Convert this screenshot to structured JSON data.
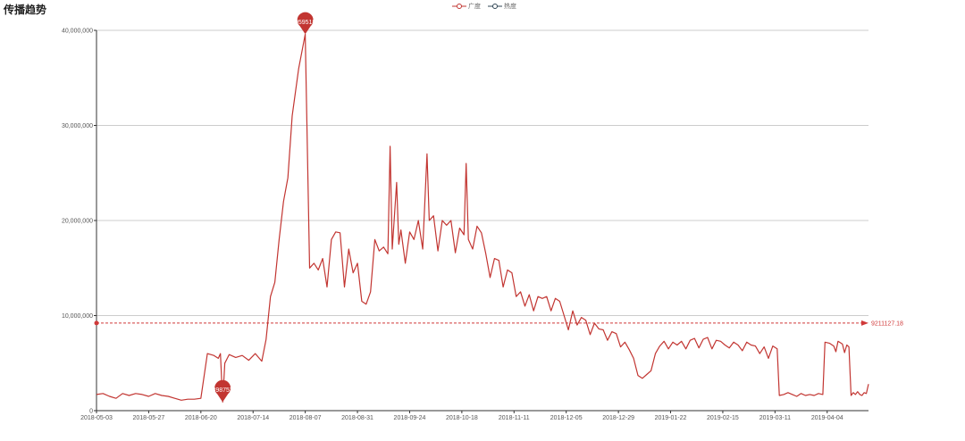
{
  "page": {
    "title": "传播趋势"
  },
  "chart_data": {
    "type": "line",
    "title": "传播趋势",
    "legend": {
      "placement": "top-center",
      "items": [
        {
          "name": "广度",
          "color": "#c23531"
        },
        {
          "name": "热度",
          "color": "#2f4554"
        }
      ]
    },
    "x_ticks": [
      "2018-05-03",
      "2018-05-27",
      "2018-06-20",
      "2018-07-14",
      "2018-08-07",
      "2018-08-31",
      "2018-09-24",
      "2018-10-18",
      "2018-11-11",
      "2018-12-05",
      "2018-12-29",
      "2019-01-22",
      "2019-02-15",
      "2019-03-11",
      "2019-04-04"
    ],
    "x_range": [
      "2018-05-03",
      "2019-04-23"
    ],
    "y_ticks": [
      {
        "value": 0,
        "label": "0"
      },
      {
        "value": 10000000,
        "label": "10,000,000"
      },
      {
        "value": 20000000,
        "label": "20,000,000"
      },
      {
        "value": 30000000,
        "label": "30,000,000"
      },
      {
        "value": 40000000,
        "label": "40,000,000"
      }
    ],
    "ylim": [
      0,
      40000000
    ],
    "grid": true,
    "series": [
      {
        "name": "广度",
        "color": "#c23531",
        "points": [
          [
            "2018-05-03",
            1700000
          ],
          [
            "2018-05-06",
            1800000
          ],
          [
            "2018-05-09",
            1500000
          ],
          [
            "2018-05-12",
            1300000
          ],
          [
            "2018-05-15",
            1800000
          ],
          [
            "2018-05-18",
            1600000
          ],
          [
            "2018-05-21",
            1800000
          ],
          [
            "2018-05-24",
            1700000
          ],
          [
            "2018-05-27",
            1500000
          ],
          [
            "2018-05-30",
            1800000
          ],
          [
            "2018-06-02",
            1600000
          ],
          [
            "2018-06-05",
            1500000
          ],
          [
            "2018-06-08",
            1300000
          ],
          [
            "2018-06-11",
            1100000
          ],
          [
            "2018-06-14",
            1200000
          ],
          [
            "2018-06-17",
            1200000
          ],
          [
            "2018-06-20",
            1300000
          ],
          [
            "2018-06-23",
            6000000
          ],
          [
            "2018-06-26",
            5800000
          ],
          [
            "2018-06-28",
            5500000
          ],
          [
            "2018-06-29",
            6000000
          ],
          [
            "2018-06-30",
            898753
          ],
          [
            "2018-07-01",
            5000000
          ],
          [
            "2018-07-03",
            5900000
          ],
          [
            "2018-07-06",
            5600000
          ],
          [
            "2018-07-09",
            5800000
          ],
          [
            "2018-07-12",
            5300000
          ],
          [
            "2018-07-15",
            6000000
          ],
          [
            "2018-07-18",
            5200000
          ],
          [
            "2018-07-20",
            7500000
          ],
          [
            "2018-07-22",
            12000000
          ],
          [
            "2018-07-24",
            13500000
          ],
          [
            "2018-07-26",
            18000000
          ],
          [
            "2018-07-28",
            22000000
          ],
          [
            "2018-07-30",
            24500000
          ],
          [
            "2018-08-01",
            31000000
          ],
          [
            "2018-08-04",
            36000000
          ],
          [
            "2018-08-07",
            39595188
          ],
          [
            "2018-08-09",
            15000000
          ],
          [
            "2018-08-11",
            15500000
          ],
          [
            "2018-08-13",
            14800000
          ],
          [
            "2018-08-15",
            16000000
          ],
          [
            "2018-08-17",
            13000000
          ],
          [
            "2018-08-19",
            18000000
          ],
          [
            "2018-08-21",
            18800000
          ],
          [
            "2018-08-23",
            18700000
          ],
          [
            "2018-08-25",
            13000000
          ],
          [
            "2018-08-27",
            17000000
          ],
          [
            "2018-08-29",
            14500000
          ],
          [
            "2018-08-31",
            15500000
          ],
          [
            "2018-09-02",
            11500000
          ],
          [
            "2018-09-04",
            11200000
          ],
          [
            "2018-09-06",
            12500000
          ],
          [
            "2018-09-08",
            18000000
          ],
          [
            "2018-09-10",
            16800000
          ],
          [
            "2018-09-12",
            17200000
          ],
          [
            "2018-09-14",
            16500000
          ],
          [
            "2018-09-15",
            27800000
          ],
          [
            "2018-09-16",
            17000000
          ],
          [
            "2018-09-18",
            24000000
          ],
          [
            "2018-09-19",
            17500000
          ],
          [
            "2018-09-20",
            19000000
          ],
          [
            "2018-09-22",
            15500000
          ],
          [
            "2018-09-24",
            18800000
          ],
          [
            "2018-09-26",
            18000000
          ],
          [
            "2018-09-28",
            20000000
          ],
          [
            "2018-09-30",
            17000000
          ],
          [
            "2018-10-02",
            27000000
          ],
          [
            "2018-10-03",
            20000000
          ],
          [
            "2018-10-05",
            20500000
          ],
          [
            "2018-10-07",
            16800000
          ],
          [
            "2018-10-09",
            20000000
          ],
          [
            "2018-10-11",
            19500000
          ],
          [
            "2018-10-13",
            20000000
          ],
          [
            "2018-10-15",
            16600000
          ],
          [
            "2018-10-17",
            19200000
          ],
          [
            "2018-10-19",
            18500000
          ],
          [
            "2018-10-20",
            26000000
          ],
          [
            "2018-10-21",
            18000000
          ],
          [
            "2018-10-23",
            17000000
          ],
          [
            "2018-10-25",
            19400000
          ],
          [
            "2018-10-27",
            18700000
          ],
          [
            "2018-10-29",
            16500000
          ],
          [
            "2018-10-31",
            14000000
          ],
          [
            "2018-11-02",
            16000000
          ],
          [
            "2018-11-04",
            15800000
          ],
          [
            "2018-11-06",
            13000000
          ],
          [
            "2018-11-08",
            14800000
          ],
          [
            "2018-11-10",
            14500000
          ],
          [
            "2018-11-12",
            12000000
          ],
          [
            "2018-11-14",
            12500000
          ],
          [
            "2018-11-16",
            11000000
          ],
          [
            "2018-11-18",
            12200000
          ],
          [
            "2018-11-20",
            10500000
          ],
          [
            "2018-11-22",
            12000000
          ],
          [
            "2018-11-24",
            11800000
          ],
          [
            "2018-11-26",
            12000000
          ],
          [
            "2018-11-28",
            10500000
          ],
          [
            "2018-11-30",
            11800000
          ],
          [
            "2018-12-02",
            11500000
          ],
          [
            "2018-12-04",
            10000000
          ],
          [
            "2018-12-06",
            8500000
          ],
          [
            "2018-12-08",
            10500000
          ],
          [
            "2018-12-10",
            9000000
          ],
          [
            "2018-12-12",
            9800000
          ],
          [
            "2018-12-14",
            9500000
          ],
          [
            "2018-12-16",
            8000000
          ],
          [
            "2018-12-18",
            9200000
          ],
          [
            "2018-12-20",
            8600000
          ],
          [
            "2018-12-22",
            8500000
          ],
          [
            "2018-12-24",
            7400000
          ],
          [
            "2018-12-26",
            8300000
          ],
          [
            "2018-12-28",
            8100000
          ],
          [
            "2018-12-30",
            6700000
          ],
          [
            "2019-01-01",
            7200000
          ],
          [
            "2019-01-03",
            6400000
          ],
          [
            "2019-01-05",
            5500000
          ],
          [
            "2019-01-07",
            3700000
          ],
          [
            "2019-01-09",
            3400000
          ],
          [
            "2019-01-11",
            3800000
          ],
          [
            "2019-01-13",
            4200000
          ],
          [
            "2019-01-15",
            6000000
          ],
          [
            "2019-01-17",
            6800000
          ],
          [
            "2019-01-19",
            7300000
          ],
          [
            "2019-01-21",
            6500000
          ],
          [
            "2019-01-23",
            7200000
          ],
          [
            "2019-01-25",
            6900000
          ],
          [
            "2019-01-27",
            7300000
          ],
          [
            "2019-01-29",
            6500000
          ],
          [
            "2019-01-31",
            7400000
          ],
          [
            "2019-02-02",
            7600000
          ],
          [
            "2019-02-04",
            6600000
          ],
          [
            "2019-02-06",
            7500000
          ],
          [
            "2019-02-08",
            7700000
          ],
          [
            "2019-02-10",
            6500000
          ],
          [
            "2019-02-12",
            7400000
          ],
          [
            "2019-02-14",
            7300000
          ],
          [
            "2019-02-16",
            6900000
          ],
          [
            "2019-02-18",
            6600000
          ],
          [
            "2019-02-20",
            7200000
          ],
          [
            "2019-02-22",
            6900000
          ],
          [
            "2019-02-24",
            6300000
          ],
          [
            "2019-02-26",
            7200000
          ],
          [
            "2019-02-28",
            6900000
          ],
          [
            "2019-03-02",
            6800000
          ],
          [
            "2019-03-04",
            6000000
          ],
          [
            "2019-03-06",
            6700000
          ],
          [
            "2019-03-08",
            5500000
          ],
          [
            "2019-03-10",
            6800000
          ],
          [
            "2019-03-12",
            6500000
          ],
          [
            "2019-03-13",
            1600000
          ],
          [
            "2019-03-15",
            1700000
          ],
          [
            "2019-03-17",
            1900000
          ],
          [
            "2019-03-19",
            1700000
          ],
          [
            "2019-03-21",
            1500000
          ],
          [
            "2019-03-23",
            1800000
          ],
          [
            "2019-03-25",
            1600000
          ],
          [
            "2019-03-27",
            1700000
          ],
          [
            "2019-03-29",
            1600000
          ],
          [
            "2019-03-31",
            1800000
          ],
          [
            "2019-04-02",
            1700000
          ],
          [
            "2019-04-03",
            7200000
          ],
          [
            "2019-04-05",
            7100000
          ],
          [
            "2019-04-07",
            6800000
          ],
          [
            "2019-04-08",
            6200000
          ],
          [
            "2019-04-09",
            7300000
          ],
          [
            "2019-04-11",
            7000000
          ],
          [
            "2019-04-12",
            6100000
          ],
          [
            "2019-04-13",
            6900000
          ],
          [
            "2019-04-14",
            6700000
          ],
          [
            "2019-04-15",
            1600000
          ],
          [
            "2019-04-16",
            1900000
          ],
          [
            "2019-04-17",
            1700000
          ],
          [
            "2019-04-18",
            2000000
          ],
          [
            "2019-04-19",
            1700000
          ],
          [
            "2019-04-20",
            1600000
          ],
          [
            "2019-04-21",
            1900000
          ],
          [
            "2019-04-22",
            1800000
          ],
          [
            "2019-04-23",
            2800000
          ]
        ]
      }
    ],
    "mark_points": [
      {
        "date": "2018-08-07",
        "value": 39595188,
        "label": "39595188"
      },
      {
        "date": "2018-06-30",
        "value": 898753,
        "label": "898753"
      }
    ],
    "mark_line": {
      "type": "average",
      "value": 9211127.18,
      "label": "9211127.18"
    }
  }
}
